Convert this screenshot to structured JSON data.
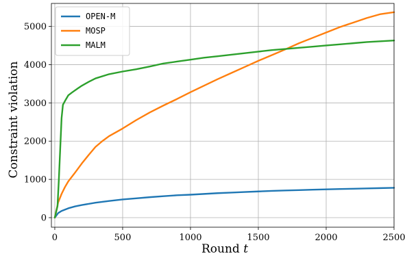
{
  "chart_data": {
    "type": "line",
    "xlabel": "Round t",
    "ylabel": "Constraint violation",
    "xlim": [
      -25,
      2500
    ],
    "ylim": [
      -250,
      5600
    ],
    "xticks": [
      0,
      500,
      1000,
      1500,
      2000,
      2500
    ],
    "yticks": [
      0,
      1000,
      2000,
      3000,
      4000,
      5000
    ],
    "grid": true,
    "legend": "top-left",
    "series": [
      {
        "name": "OPEN-M",
        "color": "#1f77b4",
        "x": [
          0,
          25,
          50,
          100,
          150,
          200,
          300,
          400,
          500,
          600,
          700,
          800,
          900,
          1000,
          1100,
          1200,
          1300,
          1400,
          1500,
          1600,
          1700,
          1800,
          1900,
          2000,
          2100,
          2200,
          2300,
          2400,
          2500
        ],
        "y": [
          0,
          120,
          175,
          245,
          295,
          330,
          390,
          435,
          475,
          505,
          535,
          560,
          585,
          600,
          620,
          640,
          655,
          670,
          685,
          700,
          710,
          720,
          730,
          740,
          748,
          756,
          764,
          772,
          780
        ]
      },
      {
        "name": "MOSP",
        "color": "#ff7f0e",
        "x": [
          0,
          25,
          50,
          75,
          100,
          150,
          200,
          250,
          300,
          350,
          400,
          500,
          600,
          700,
          800,
          900,
          1000,
          1100,
          1200,
          1300,
          1400,
          1500,
          1600,
          1700,
          1800,
          1900,
          2000,
          2100,
          2200,
          2300,
          2400,
          2500
        ],
        "y": [
          0,
          400,
          620,
          800,
          950,
          1180,
          1420,
          1640,
          1850,
          2000,
          2130,
          2330,
          2550,
          2750,
          2930,
          3100,
          3280,
          3450,
          3620,
          3780,
          3940,
          4100,
          4250,
          4400,
          4560,
          4700,
          4840,
          4980,
          5100,
          5220,
          5320,
          5370
        ]
      },
      {
        "name": "MALM",
        "color": "#2ca02c",
        "x": [
          0,
          20,
          30,
          40,
          50,
          60,
          80,
          100,
          130,
          170,
          200,
          250,
          300,
          400,
          500,
          600,
          700,
          800,
          900,
          1000,
          1100,
          1200,
          1300,
          1400,
          1500,
          1600,
          1700,
          1800,
          1900,
          2000,
          2100,
          2200,
          2300,
          2400,
          2500
        ],
        "y": [
          0,
          300,
          1000,
          1800,
          2600,
          2950,
          3080,
          3200,
          3280,
          3380,
          3450,
          3550,
          3640,
          3750,
          3820,
          3880,
          3950,
          4030,
          4080,
          4130,
          4180,
          4220,
          4260,
          4300,
          4340,
          4380,
          4410,
          4440,
          4470,
          4500,
          4530,
          4560,
          4590,
          4610,
          4630
        ]
      }
    ]
  }
}
